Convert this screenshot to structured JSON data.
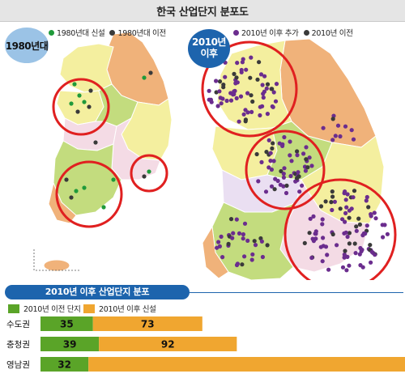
{
  "title": "한국 산업단지 분포도",
  "map_1980": {
    "badge": "1980년대",
    "legend": [
      {
        "label": "1980년대 신설",
        "color": "#1f9a3a"
      },
      {
        "label": "1980년대 이전",
        "color": "#3a3a3a"
      }
    ]
  },
  "map_2010": {
    "badge_line1": "2010년",
    "badge_line2": "이후",
    "legend": [
      {
        "label": "2010년 이후 추가",
        "color": "#6b2d8e"
      },
      {
        "label": "2010년 이전",
        "color": "#3a3a3a"
      }
    ]
  },
  "colors": {
    "region_orange": "#f0b27a",
    "region_yellow": "#f4ef9f",
    "region_green": "#c3dc7e",
    "region_pink": "#f4dbe5",
    "region_lavender": "#eadff2",
    "highlight_circle": "#e02020",
    "bar_before": "#5aa428",
    "bar_after": "#f0a630"
  },
  "chart_data": {
    "type": "bar",
    "title": "2010년 이후 산업단지 분포",
    "categories": [
      "수도권",
      "충청권",
      "영남권"
    ],
    "series": [
      {
        "name": "2010년 이전 단지",
        "values": [
          35,
          39,
          32
        ]
      },
      {
        "name": "2010년 이후 신설",
        "values": [
          73,
          92,
          213
        ]
      }
    ],
    "stacked": true,
    "legend_position": "top-left"
  }
}
